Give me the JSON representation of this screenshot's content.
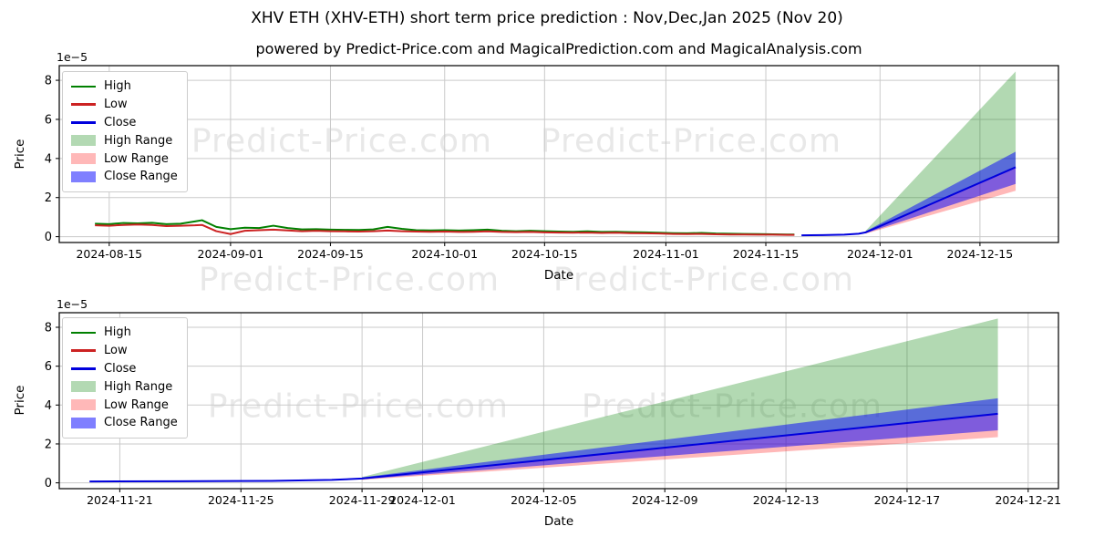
{
  "title": "XHV ETH (XHV-ETH) short term price prediction : Nov,Dec,Jan 2025 (Nov 20)",
  "subtitle": "powered by Predict-Price.com and MagicalPrediction.com and MagicalAnalysis.com",
  "watermark": "Predict-Price.com",
  "colors": {
    "high_line": "#008000",
    "low_line": "#cc2222",
    "close_line": "#0000dd",
    "high_range_fill": "rgba(0,128,0,0.30)",
    "low_range_fill": "rgba(255,0,0,0.28)",
    "close_range_fill": "rgba(0,0,255,0.50)",
    "legend_high_range": "#b3d9b3",
    "legend_low_range": "#ffb8b8",
    "legend_close_range": "#7f7fff",
    "grid": "#cacaca",
    "spine": "#111111",
    "watermark_gray": "#e8e8e8"
  },
  "legend": [
    {
      "label": "High",
      "type": "line",
      "color": "#008000"
    },
    {
      "label": "Low",
      "type": "line",
      "color": "#cc2222"
    },
    {
      "label": "Close",
      "type": "line",
      "color": "#0000dd"
    },
    {
      "label": "High Range",
      "type": "patch",
      "color": "#b3d9b3"
    },
    {
      "label": "Low Range",
      "type": "patch",
      "color": "#ffb8b8"
    },
    {
      "label": "Close Range",
      "type": "patch",
      "color": "#7f7fff"
    }
  ],
  "chart_data": [
    {
      "type": "line",
      "name": "full-history-chart",
      "xlabel": "Date",
      "ylabel": "Price",
      "offset_text": "1e−5",
      "unit_scale": "1e-5",
      "grid": true,
      "legend_position": "upper left",
      "ylim": [
        -0.3,
        8.75
      ],
      "yticks": [
        0,
        2,
        4,
        6,
        8
      ],
      "xlim": [
        "2024-08-08",
        "2024-12-26"
      ],
      "xticks": [
        "2024-08-15",
        "2024-09-01",
        "2024-09-15",
        "2024-10-01",
        "2024-10-15",
        "2024-11-01",
        "2024-11-15",
        "2024-12-01",
        "2024-12-15"
      ],
      "series": [
        {
          "name": "High",
          "color": "#008000",
          "x": [
            "2024-08-13",
            "2024-08-15",
            "2024-08-17",
            "2024-08-19",
            "2024-08-21",
            "2024-08-23",
            "2024-08-25",
            "2024-08-27",
            "2024-08-28",
            "2024-08-30",
            "2024-09-01",
            "2024-09-03",
            "2024-09-05",
            "2024-09-07",
            "2024-09-09",
            "2024-09-11",
            "2024-09-13",
            "2024-09-15",
            "2024-09-17",
            "2024-09-19",
            "2024-09-21",
            "2024-09-23",
            "2024-09-25",
            "2024-09-27",
            "2024-09-29",
            "2024-10-01",
            "2024-10-03",
            "2024-10-05",
            "2024-10-07",
            "2024-10-09",
            "2024-10-11",
            "2024-10-13",
            "2024-10-15",
            "2024-10-17",
            "2024-10-19",
            "2024-10-21",
            "2024-10-23",
            "2024-10-25",
            "2024-10-27",
            "2024-10-29",
            "2024-10-31",
            "2024-11-02",
            "2024-11-04",
            "2024-11-06",
            "2024-11-08",
            "2024-11-10",
            "2024-11-12",
            "2024-11-14",
            "2024-11-16",
            "2024-11-18",
            "2024-11-19"
          ],
          "y": [
            0.66,
            0.64,
            0.7,
            0.68,
            0.71,
            0.64,
            0.66,
            0.78,
            0.84,
            0.5,
            0.38,
            0.46,
            0.44,
            0.56,
            0.44,
            0.37,
            0.38,
            0.36,
            0.35,
            0.34,
            0.37,
            0.5,
            0.4,
            0.33,
            0.32,
            0.33,
            0.31,
            0.33,
            0.36,
            0.3,
            0.28,
            0.3,
            0.28,
            0.26,
            0.25,
            0.27,
            0.24,
            0.25,
            0.23,
            0.22,
            0.2,
            0.18,
            0.17,
            0.19,
            0.16,
            0.15,
            0.14,
            0.13,
            0.12,
            0.11,
            0.11
          ]
        },
        {
          "name": "Low",
          "color": "#cc2222",
          "x": [
            "2024-08-13",
            "2024-08-15",
            "2024-08-17",
            "2024-08-19",
            "2024-08-21",
            "2024-08-23",
            "2024-08-25",
            "2024-08-27",
            "2024-08-28",
            "2024-08-30",
            "2024-09-01",
            "2024-09-03",
            "2024-09-05",
            "2024-09-07",
            "2024-09-09",
            "2024-09-11",
            "2024-09-13",
            "2024-09-15",
            "2024-09-17",
            "2024-09-19",
            "2024-09-21",
            "2024-09-23",
            "2024-09-25",
            "2024-09-27",
            "2024-09-29",
            "2024-10-01",
            "2024-10-03",
            "2024-10-05",
            "2024-10-07",
            "2024-10-09",
            "2024-10-11",
            "2024-10-13",
            "2024-10-15",
            "2024-10-17",
            "2024-10-19",
            "2024-10-21",
            "2024-10-23",
            "2024-10-25",
            "2024-10-27",
            "2024-10-29",
            "2024-10-31",
            "2024-11-02",
            "2024-11-04",
            "2024-11-06",
            "2024-11-08",
            "2024-11-10",
            "2024-11-12",
            "2024-11-14",
            "2024-11-16",
            "2024-11-18",
            "2024-11-19"
          ],
          "y": [
            0.58,
            0.56,
            0.6,
            0.62,
            0.6,
            0.54,
            0.56,
            0.58,
            0.6,
            0.28,
            0.13,
            0.3,
            0.33,
            0.36,
            0.32,
            0.28,
            0.3,
            0.28,
            0.27,
            0.26,
            0.28,
            0.31,
            0.28,
            0.26,
            0.25,
            0.26,
            0.24,
            0.25,
            0.27,
            0.24,
            0.23,
            0.24,
            0.22,
            0.21,
            0.2,
            0.21,
            0.19,
            0.2,
            0.18,
            0.17,
            0.16,
            0.14,
            0.13,
            0.14,
            0.12,
            0.11,
            0.11,
            0.1,
            0.1,
            0.09,
            0.09
          ]
        },
        {
          "name": "Close",
          "color": "#0000dd",
          "x": [
            "2024-11-20",
            "2024-11-23",
            "2024-11-26",
            "2024-11-28",
            "2024-11-29",
            "2024-12-20"
          ],
          "y": [
            0.07,
            0.08,
            0.1,
            0.15,
            0.22,
            3.55
          ]
        }
      ],
      "bands": [
        {
          "name": "High Range",
          "fill": "rgba(0,128,0,0.30)",
          "x": [
            "2024-11-29",
            "2024-12-20"
          ],
          "upper": [
            0.3,
            8.45
          ],
          "lower": [
            0.22,
            3.55
          ]
        },
        {
          "name": "Low Range",
          "fill": "rgba(255,0,0,0.28)",
          "x": [
            "2024-11-29",
            "2024-12-20"
          ],
          "upper": [
            0.22,
            3.55
          ],
          "lower": [
            0.15,
            2.35
          ]
        },
        {
          "name": "Close Range",
          "fill": "rgba(0,0,255,0.50)",
          "x": [
            "2024-11-29",
            "2024-12-20"
          ],
          "upper": [
            0.28,
            4.35
          ],
          "lower": [
            0.18,
            2.7
          ]
        }
      ]
    },
    {
      "type": "line",
      "name": "prediction-zoom-chart",
      "xlabel": "Date",
      "ylabel": "Price",
      "offset_text": "1e−5",
      "unit_scale": "1e-5",
      "grid": true,
      "legend_position": "upper left",
      "ylim": [
        -0.3,
        8.75
      ],
      "yticks": [
        0,
        2,
        4,
        6,
        8
      ],
      "xlim": [
        "2024-11-19",
        "2024-12-22"
      ],
      "xticks": [
        "2024-11-21",
        "2024-11-25",
        "2024-11-29",
        "2024-12-01",
        "2024-12-05",
        "2024-12-09",
        "2024-12-13",
        "2024-12-17",
        "2024-12-21"
      ],
      "series": [
        {
          "name": "High",
          "color": "#008000",
          "x": [],
          "y": []
        },
        {
          "name": "Low",
          "color": "#cc2222",
          "x": [],
          "y": []
        },
        {
          "name": "Close",
          "color": "#0000dd",
          "x": [
            "2024-11-20",
            "2024-11-23",
            "2024-11-26",
            "2024-11-28",
            "2024-11-29",
            "2024-12-20"
          ],
          "y": [
            0.07,
            0.08,
            0.1,
            0.15,
            0.22,
            3.55
          ]
        }
      ],
      "bands": [
        {
          "name": "High Range",
          "fill": "rgba(0,128,0,0.30)",
          "x": [
            "2024-11-29",
            "2024-12-20"
          ],
          "upper": [
            0.3,
            8.45
          ],
          "lower": [
            0.22,
            3.55
          ]
        },
        {
          "name": "Low Range",
          "fill": "rgba(255,0,0,0.28)",
          "x": [
            "2024-11-29",
            "2024-12-20"
          ],
          "upper": [
            0.22,
            3.55
          ],
          "lower": [
            0.15,
            2.35
          ]
        },
        {
          "name": "Close Range",
          "fill": "rgba(0,0,255,0.50)",
          "x": [
            "2024-11-29",
            "2024-12-20"
          ],
          "upper": [
            0.28,
            4.35
          ],
          "lower": [
            0.18,
            2.7
          ]
        }
      ]
    }
  ]
}
